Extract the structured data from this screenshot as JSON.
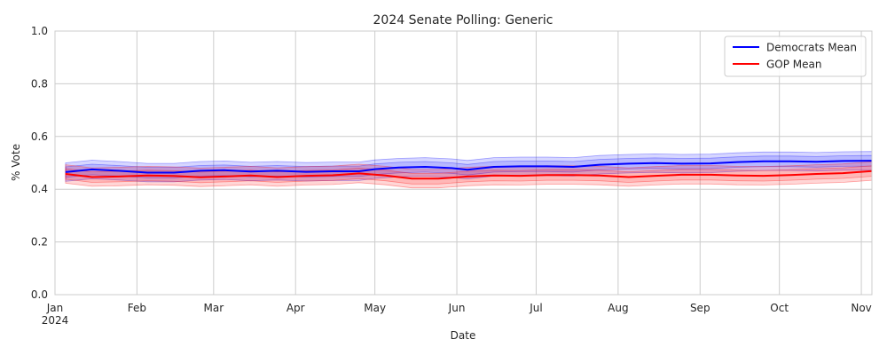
{
  "chart_data": {
    "type": "line",
    "title": "2024 Senate Polling: Generic",
    "xlabel": "Date",
    "ylabel": "% Vote",
    "ylim": [
      0.0,
      1.0
    ],
    "xlim": [
      "2024-01-01",
      "2024-11-05"
    ],
    "grid": true,
    "legend_position": "top-right",
    "x_ticks": [
      {
        "date": "2024-01-01",
        "label": "Jan",
        "sublabel": "2024"
      },
      {
        "date": "2024-02-01",
        "label": "Feb"
      },
      {
        "date": "2024-03-01",
        "label": "Mar"
      },
      {
        "date": "2024-04-01",
        "label": "Apr"
      },
      {
        "date": "2024-05-01",
        "label": "May"
      },
      {
        "date": "2024-06-01",
        "label": "Jun"
      },
      {
        "date": "2024-07-01",
        "label": "Jul"
      },
      {
        "date": "2024-08-01",
        "label": "Aug"
      },
      {
        "date": "2024-09-01",
        "label": "Sep"
      },
      {
        "date": "2024-10-01",
        "label": "Oct"
      },
      {
        "date": "2024-11-01",
        "label": "Nov"
      }
    ],
    "y_ticks": [
      {
        "value": 0.0,
        "label": "0.0"
      },
      {
        "value": 0.2,
        "label": "0.2"
      },
      {
        "value": 0.4,
        "label": "0.4"
      },
      {
        "value": 0.6,
        "label": "0.6"
      },
      {
        "value": 0.8,
        "label": "0.8"
      },
      {
        "value": 1.0,
        "label": "1.0"
      }
    ],
    "series": [
      {
        "name": "Democrats Mean",
        "color": "#0000ff",
        "band_inner": 0.02,
        "band_outer": 0.035,
        "points": [
          {
            "x": "2024-01-05",
            "y": 0.465
          },
          {
            "x": "2024-01-15",
            "y": 0.475
          },
          {
            "x": "2024-01-25",
            "y": 0.47
          },
          {
            "x": "2024-02-05",
            "y": 0.463
          },
          {
            "x": "2024-02-15",
            "y": 0.463
          },
          {
            "x": "2024-02-25",
            "y": 0.47
          },
          {
            "x": "2024-03-05",
            "y": 0.472
          },
          {
            "x": "2024-03-15",
            "y": 0.467
          },
          {
            "x": "2024-03-25",
            "y": 0.47
          },
          {
            "x": "2024-04-05",
            "y": 0.466
          },
          {
            "x": "2024-04-15",
            "y": 0.468
          },
          {
            "x": "2024-04-25",
            "y": 0.468
          },
          {
            "x": "2024-05-01",
            "y": 0.476
          },
          {
            "x": "2024-05-10",
            "y": 0.482
          },
          {
            "x": "2024-05-20",
            "y": 0.485
          },
          {
            "x": "2024-05-30",
            "y": 0.48
          },
          {
            "x": "2024-06-05",
            "y": 0.474
          },
          {
            "x": "2024-06-15",
            "y": 0.485
          },
          {
            "x": "2024-06-25",
            "y": 0.487
          },
          {
            "x": "2024-07-05",
            "y": 0.487
          },
          {
            "x": "2024-07-15",
            "y": 0.485
          },
          {
            "x": "2024-07-25",
            "y": 0.493
          },
          {
            "x": "2024-08-05",
            "y": 0.497
          },
          {
            "x": "2024-08-15",
            "y": 0.499
          },
          {
            "x": "2024-08-25",
            "y": 0.497
          },
          {
            "x": "2024-09-05",
            "y": 0.498
          },
          {
            "x": "2024-09-15",
            "y": 0.503
          },
          {
            "x": "2024-09-25",
            "y": 0.506
          },
          {
            "x": "2024-10-05",
            "y": 0.506
          },
          {
            "x": "2024-10-15",
            "y": 0.504
          },
          {
            "x": "2024-10-25",
            "y": 0.507
          },
          {
            "x": "2024-11-05",
            "y": 0.508
          }
        ]
      },
      {
        "name": "GOP Mean",
        "color": "#ff0000",
        "band_inner": 0.02,
        "band_outer": 0.035,
        "points": [
          {
            "x": "2024-01-05",
            "y": 0.458
          },
          {
            "x": "2024-01-15",
            "y": 0.446
          },
          {
            "x": "2024-01-25",
            "y": 0.448
          },
          {
            "x": "2024-02-05",
            "y": 0.452
          },
          {
            "x": "2024-02-15",
            "y": 0.45
          },
          {
            "x": "2024-02-25",
            "y": 0.445
          },
          {
            "x": "2024-03-05",
            "y": 0.448
          },
          {
            "x": "2024-03-15",
            "y": 0.452
          },
          {
            "x": "2024-03-25",
            "y": 0.446
          },
          {
            "x": "2024-04-05",
            "y": 0.451
          },
          {
            "x": "2024-04-15",
            "y": 0.453
          },
          {
            "x": "2024-04-25",
            "y": 0.46
          },
          {
            "x": "2024-05-05",
            "y": 0.452
          },
          {
            "x": "2024-05-15",
            "y": 0.44
          },
          {
            "x": "2024-05-25",
            "y": 0.44
          },
          {
            "x": "2024-06-05",
            "y": 0.448
          },
          {
            "x": "2024-06-15",
            "y": 0.452
          },
          {
            "x": "2024-06-25",
            "y": 0.451
          },
          {
            "x": "2024-07-05",
            "y": 0.454
          },
          {
            "x": "2024-07-15",
            "y": 0.454
          },
          {
            "x": "2024-07-25",
            "y": 0.452
          },
          {
            "x": "2024-08-05",
            "y": 0.446
          },
          {
            "x": "2024-08-15",
            "y": 0.451
          },
          {
            "x": "2024-08-25",
            "y": 0.455
          },
          {
            "x": "2024-09-05",
            "y": 0.455
          },
          {
            "x": "2024-09-15",
            "y": 0.452
          },
          {
            "x": "2024-09-25",
            "y": 0.451
          },
          {
            "x": "2024-10-05",
            "y": 0.454
          },
          {
            "x": "2024-10-15",
            "y": 0.458
          },
          {
            "x": "2024-10-25",
            "y": 0.461
          },
          {
            "x": "2024-11-05",
            "y": 0.469
          }
        ]
      }
    ]
  }
}
